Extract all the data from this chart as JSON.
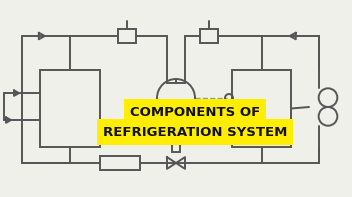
{
  "bg_color": "#f0f0eb",
  "line_color": "#555555",
  "lw": 1.4,
  "title_line1": "COMPONENTS OF",
  "title_line2": "REFRIGERATION SYSTEM",
  "title_bg": "#ffee00",
  "title_color": "#111111",
  "title_fontsize": 9.5,
  "fig_w": 3.52,
  "fig_h": 1.97,
  "dpi": 100
}
